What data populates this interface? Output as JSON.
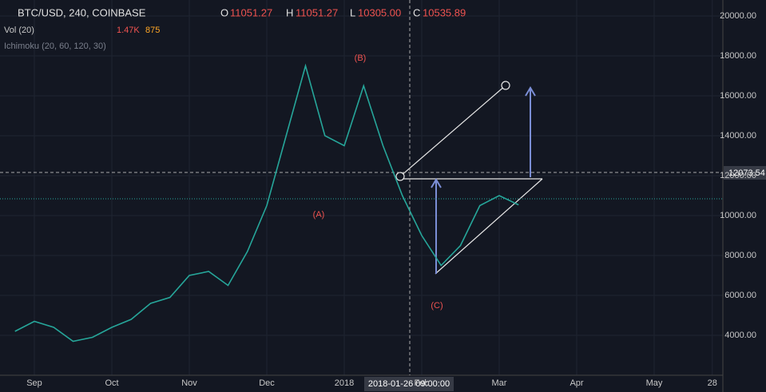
{
  "chart_data": {
    "type": "line",
    "title": "BTC/USD, 240, COINBASE",
    "ohlc": [
      {
        "label": "O",
        "value": "11051.27"
      },
      {
        "label": "H",
        "value": "11051.27"
      },
      {
        "label": "L",
        "value": "10305.00"
      },
      {
        "label": "C",
        "value": "10535.89"
      }
    ],
    "indicators": [
      {
        "name": "Vol (20)",
        "values": [
          "1.47K",
          "875"
        ]
      },
      {
        "name": "Ichimoku (20, 60, 120, 30)"
      }
    ],
    "annotations": [
      "(A)",
      "(B)",
      "(C)"
    ],
    "price_label": "12073.54",
    "crosshair_label": "2018-01-26 09:00:00",
    "categories": [
      null,
      "Sep",
      null,
      null,
      null,
      "Oct",
      null,
      null,
      null,
      "Nov",
      null,
      null,
      null,
      "Dec",
      null,
      null,
      null,
      "2018",
      null,
      null,
      null,
      "Feb",
      null,
      null,
      null,
      "Mar",
      null,
      null,
      null,
      "Apr",
      null,
      null,
      null,
      "May",
      null,
      null,
      "28"
    ],
    "series": [
      {
        "name": "BTC/USD",
        "color": "#26a69a",
        "values": [
          4200,
          4700,
          4400,
          3700,
          3900,
          4400,
          4800,
          5600,
          5900,
          7000,
          7200,
          6500,
          8200,
          10500,
          14000,
          17500,
          14000,
          13500,
          16500,
          13500,
          11000,
          9000,
          7500,
          8500,
          10500,
          11000,
          10535.89,
          null,
          null,
          null,
          null,
          null,
          null,
          null,
          null,
          null,
          null
        ]
      }
    ],
    "ylim": [
      2000,
      20800
    ],
    "yticks": [
      {
        "value": 4000,
        "label": "4000.00"
      },
      {
        "value": 6000,
        "label": "6000.00"
      },
      {
        "value": 8000,
        "label": "8000.00"
      },
      {
        "value": 10000,
        "label": "10000.00"
      },
      {
        "value": 12000,
        "label": "12000.00"
      },
      {
        "value": 14000,
        "label": "14000.00"
      },
      {
        "value": 16000,
        "label": "16000.00"
      },
      {
        "value": 18000,
        "label": "18000.00"
      },
      {
        "value": 20000,
        "label": "20000.00"
      }
    ],
    "grid": true
  }
}
